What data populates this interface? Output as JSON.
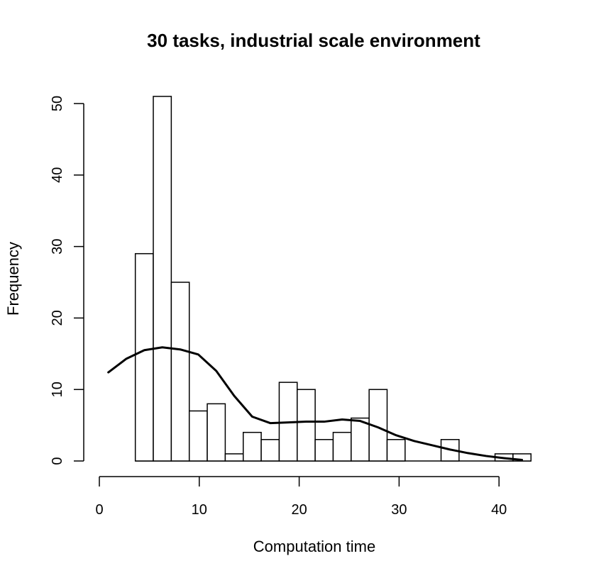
{
  "chart_data": {
    "type": "bar",
    "title": "30 tasks, industrial scale environment",
    "xlabel": "Computation time",
    "ylabel": "Frequency",
    "xlim": [
      0,
      43
    ],
    "ylim": [
      0,
      50
    ],
    "x_ticks": [
      0,
      10,
      20,
      30,
      40
    ],
    "y_ticks": [
      0,
      10,
      20,
      30,
      40,
      50
    ],
    "bins": [
      {
        "x0": 3.6,
        "x1": 5.4,
        "count": 29
      },
      {
        "x0": 5.4,
        "x1": 7.2,
        "count": 51
      },
      {
        "x0": 7.2,
        "x1": 9.0,
        "count": 25
      },
      {
        "x0": 9.0,
        "x1": 10.8,
        "count": 7
      },
      {
        "x0": 10.8,
        "x1": 12.6,
        "count": 8
      },
      {
        "x0": 12.6,
        "x1": 14.4,
        "count": 1
      },
      {
        "x0": 14.4,
        "x1": 16.2,
        "count": 4
      },
      {
        "x0": 16.2,
        "x1": 18.0,
        "count": 3
      },
      {
        "x0": 18.0,
        "x1": 19.8,
        "count": 11
      },
      {
        "x0": 19.8,
        "x1": 21.6,
        "count": 10
      },
      {
        "x0": 21.6,
        "x1": 23.4,
        "count": 3
      },
      {
        "x0": 23.4,
        "x1": 25.2,
        "count": 4
      },
      {
        "x0": 25.2,
        "x1": 27.0,
        "count": 6
      },
      {
        "x0": 27.0,
        "x1": 28.8,
        "count": 10
      },
      {
        "x0": 28.8,
        "x1": 30.6,
        "count": 3
      },
      {
        "x0": 34.2,
        "x1": 36.0,
        "count": 3
      },
      {
        "x0": 39.6,
        "x1": 41.4,
        "count": 1
      },
      {
        "x0": 41.4,
        "x1": 43.2,
        "count": 1
      }
    ],
    "density_curve": {
      "x": [
        0.9,
        2.7,
        4.5,
        6.3,
        8.1,
        9.9,
        11.7,
        13.5,
        15.3,
        17.1,
        18.9,
        20.7,
        22.5,
        24.3,
        26.1,
        27.9,
        29.7,
        31.5,
        33.3,
        35.1,
        36.9,
        38.7,
        40.5,
        42.3
      ],
      "y": [
        12.4,
        14.3,
        15.5,
        15.9,
        15.6,
        14.9,
        12.6,
        9.1,
        6.2,
        5.3,
        5.4,
        5.5,
        5.5,
        5.8,
        5.6,
        4.7,
        3.6,
        2.8,
        2.2,
        1.6,
        1.1,
        0.7,
        0.4,
        0.15
      ]
    },
    "grid": false,
    "legend": "none"
  }
}
